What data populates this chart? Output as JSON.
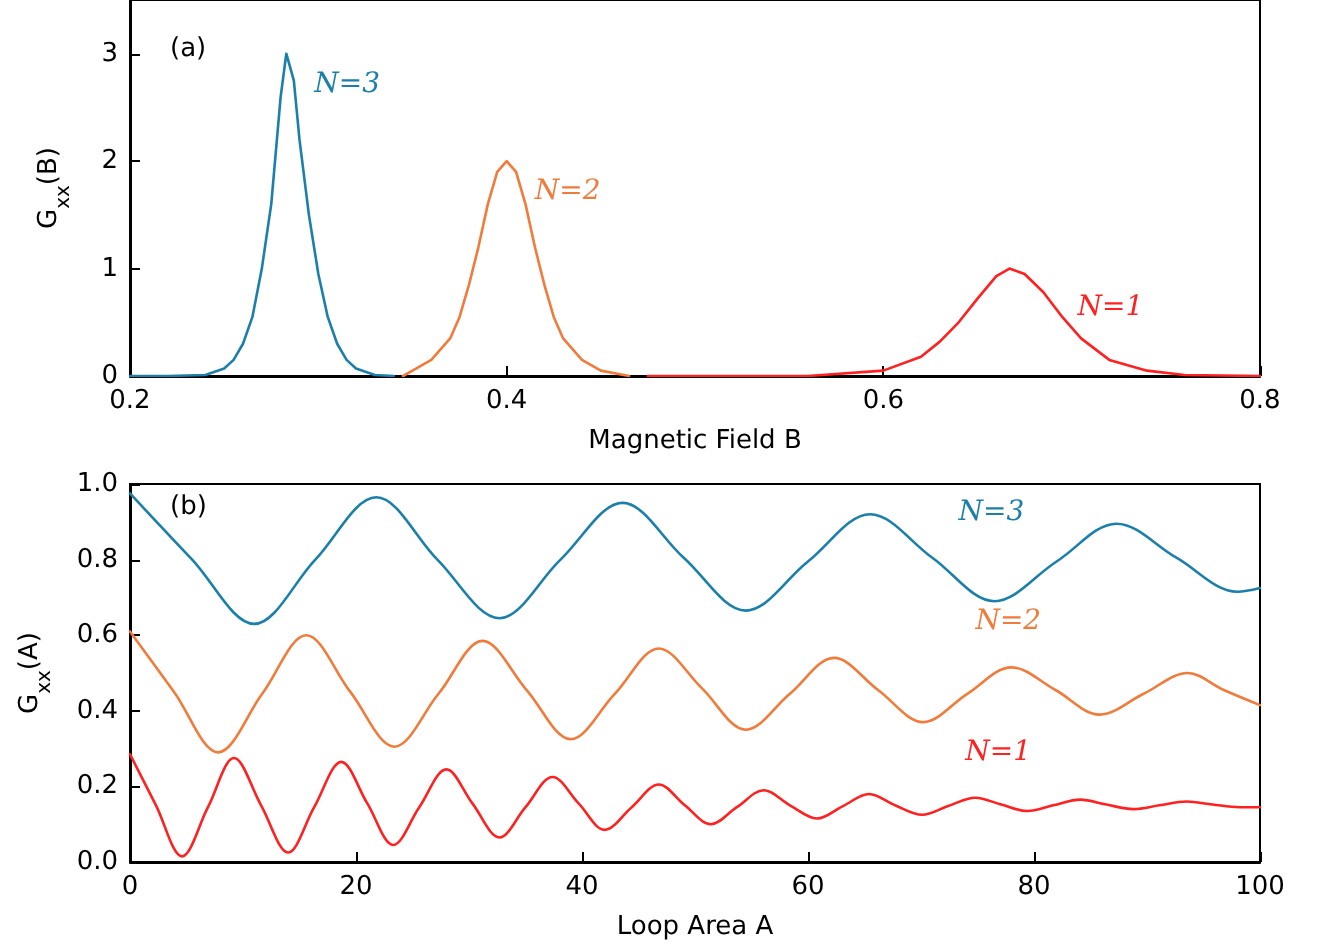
{
  "chart_data": [
    {
      "type": "line",
      "xlabel": "Magnetic Field B",
      "ylabel": "G$_{xx}$(B)",
      "annotations": [
        "(a)"
      ],
      "xlim": [
        0.2,
        0.8
      ],
      "xticks": [
        0.2,
        0.4,
        0.6,
        0.8
      ],
      "ylim": [
        0,
        3.5
      ],
      "yticks": [
        0,
        1,
        2,
        3
      ],
      "grid": false,
      "legend": false,
      "marker": "none",
      "line_style": "solid",
      "series": [
        {
          "name": "N=3",
          "color": "#1b7fab",
          "x": [
            0.2,
            0.22,
            0.24,
            0.25,
            0.255,
            0.26,
            0.265,
            0.27,
            0.275,
            0.28,
            0.283,
            0.287,
            0.29,
            0.295,
            0.3,
            0.305,
            0.31,
            0.315,
            0.32,
            0.33,
            0.34
          ],
          "values": [
            0,
            0,
            0.01,
            0.07,
            0.15,
            0.3,
            0.55,
            1.0,
            1.6,
            2.6,
            3.0,
            2.75,
            2.2,
            1.5,
            0.95,
            0.55,
            0.3,
            0.15,
            0.07,
            0.01,
            0
          ]
        },
        {
          "name": "N=2",
          "color": "#f07b3b",
          "x": [
            0.345,
            0.35,
            0.36,
            0.37,
            0.375,
            0.38,
            0.385,
            0.39,
            0.395,
            0.4,
            0.405,
            0.41,
            0.415,
            0.42,
            0.425,
            0.43,
            0.44,
            0.45,
            0.465
          ],
          "values": [
            0,
            0.05,
            0.15,
            0.35,
            0.55,
            0.85,
            1.2,
            1.6,
            1.9,
            2.0,
            1.9,
            1.6,
            1.2,
            0.85,
            0.55,
            0.35,
            0.15,
            0.05,
            0
          ]
        },
        {
          "name": "N=1",
          "color": "#ff2020",
          "x": [
            0.475,
            0.56,
            0.6,
            0.62,
            0.63,
            0.64,
            0.65,
            0.66,
            0.667,
            0.675,
            0.685,
            0.695,
            0.705,
            0.72,
            0.74,
            0.76,
            0.8
          ],
          "values": [
            0,
            0,
            0.05,
            0.18,
            0.32,
            0.5,
            0.72,
            0.93,
            1.0,
            0.95,
            0.78,
            0.55,
            0.35,
            0.15,
            0.05,
            0.01,
            0
          ]
        }
      ]
    },
    {
      "type": "line",
      "xlabel": "Loop Area A",
      "ylabel": "G$_{xx}$(A)",
      "annotations": [
        "(b)"
      ],
      "xlim": [
        0,
        100
      ],
      "xticks": [
        0,
        20,
        40,
        60,
        80,
        100
      ],
      "ylim": [
        0,
        1
      ],
      "yticks": [
        {
          "value": 0,
          "label": "0.0"
        },
        {
          "value": 0.2,
          "label": "0.2"
        },
        {
          "value": 0.4,
          "label": "0.4"
        },
        {
          "value": 0.6,
          "label": "0.6"
        },
        {
          "value": 0.8,
          "label": "0.8"
        },
        {
          "value": 1,
          "label": "1.0"
        }
      ],
      "grid": false,
      "legend": false,
      "marker": "none",
      "line_style": "solid",
      "series": [
        {
          "name": "N=3",
          "color": "#1b7fab",
          "x": [
            0,
            5.5,
            11,
            16.4,
            21.8,
            27.2,
            32.7,
            38.1,
            43.6,
            49,
            54.5,
            60,
            65.5,
            71,
            76.5,
            82,
            87.3,
            92.6,
            98,
            100
          ],
          "values": [
            0.975,
            0.8,
            0.63,
            0.8,
            0.965,
            0.8,
            0.645,
            0.8,
            0.95,
            0.805,
            0.665,
            0.795,
            0.92,
            0.805,
            0.69,
            0.795,
            0.895,
            0.805,
            0.715,
            0.725
          ]
        },
        {
          "name": "N=2",
          "color": "#f07b3b",
          "x": [
            0,
            3.9,
            7.8,
            11.7,
            15.6,
            19.5,
            23.4,
            27.3,
            31.2,
            35.1,
            39,
            42.9,
            46.8,
            50.6,
            54.5,
            58.4,
            62.3,
            66.2,
            70.2,
            74.1,
            78,
            81.9,
            85.8,
            89.7,
            93.6,
            96.8,
            100
          ],
          "values": [
            0.61,
            0.45,
            0.29,
            0.445,
            0.6,
            0.45,
            0.305,
            0.445,
            0.585,
            0.455,
            0.325,
            0.445,
            0.565,
            0.46,
            0.35,
            0.445,
            0.54,
            0.455,
            0.37,
            0.445,
            0.515,
            0.455,
            0.39,
            0.445,
            0.5,
            0.455,
            0.415
          ]
        },
        {
          "name": "N=1",
          "color": "#ff2020",
          "x": [
            0,
            2.3,
            4.6,
            6.9,
            9.2,
            11.6,
            14,
            16.3,
            18.7,
            21,
            23.3,
            25.6,
            28,
            30.3,
            32.7,
            35,
            37.4,
            39.7,
            42,
            44.4,
            46.8,
            49.1,
            51.4,
            53.7,
            56.1,
            58.4,
            60.8,
            63.1,
            65.4,
            67.7,
            70.1,
            72.4,
            74.8,
            77.1,
            79.4,
            81.7,
            84.1,
            86.4,
            88.8,
            91.1,
            93.5,
            95.8,
            98.2,
            100
          ],
          "values": [
            0.285,
            0.15,
            0.015,
            0.145,
            0.275,
            0.15,
            0.025,
            0.145,
            0.265,
            0.155,
            0.045,
            0.145,
            0.245,
            0.155,
            0.065,
            0.145,
            0.225,
            0.155,
            0.085,
            0.145,
            0.205,
            0.15,
            0.1,
            0.145,
            0.19,
            0.15,
            0.115,
            0.148,
            0.18,
            0.15,
            0.125,
            0.148,
            0.17,
            0.152,
            0.135,
            0.15,
            0.165,
            0.152,
            0.14,
            0.15,
            0.16,
            0.152,
            0.145,
            0.145
          ]
        }
      ]
    }
  ]
}
